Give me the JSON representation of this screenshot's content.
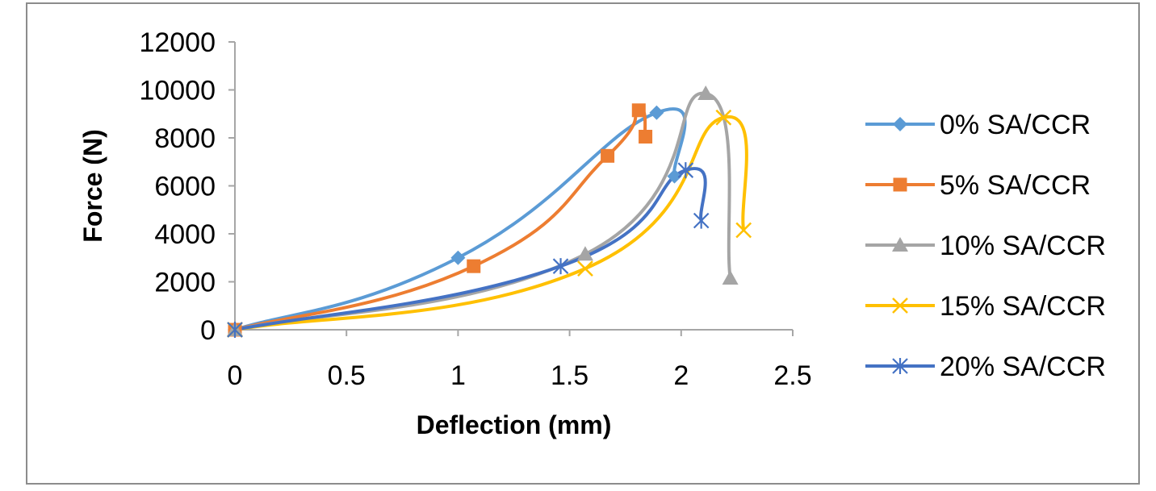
{
  "chart_data": {
    "type": "scatter",
    "title": "",
    "xlabel": "Deflection (mm)",
    "ylabel": "Force (N)",
    "xlim": [
      0,
      2.5
    ],
    "ylim": [
      0,
      12000
    ],
    "x_ticks": [
      "0",
      "0.5",
      "1",
      "1.5",
      "2",
      "2.5"
    ],
    "y_ticks": [
      "0",
      "2000",
      "4000",
      "6000",
      "8000",
      "10000",
      "12000"
    ],
    "grid": false,
    "legend_position": "right",
    "smooth_lines": true,
    "series": [
      {
        "name": "0% SA/CCR",
        "color": "#5B9BD5",
        "marker": "diamond",
        "x": [
          0,
          1.0,
          1.89,
          1.97
        ],
        "y": [
          0,
          3000,
          9050,
          6400
        ]
      },
      {
        "name": "5% SA/CCR",
        "color": "#ED7D31",
        "marker": "square",
        "x": [
          0,
          1.07,
          1.67,
          1.81,
          1.84
        ],
        "y": [
          0,
          2650,
          7250,
          9150,
          8050
        ]
      },
      {
        "name": "10% SA/CCR",
        "color": "#A5A5A5",
        "marker": "triangle",
        "x": [
          0,
          1.57,
          2.11,
          2.22
        ],
        "y": [
          0,
          3150,
          9850,
          2150
        ]
      },
      {
        "name": "15% SA/CCR",
        "color": "#FFC000",
        "marker": "x",
        "x": [
          0,
          1.57,
          2.19,
          2.28
        ],
        "y": [
          0,
          2550,
          8850,
          4150
        ]
      },
      {
        "name": "20% SA/CCR",
        "color": "#4472C4",
        "marker": "star",
        "x": [
          0,
          1.46,
          2.02,
          2.09
        ],
        "y": [
          0,
          2650,
          6650,
          4550
        ]
      }
    ]
  }
}
